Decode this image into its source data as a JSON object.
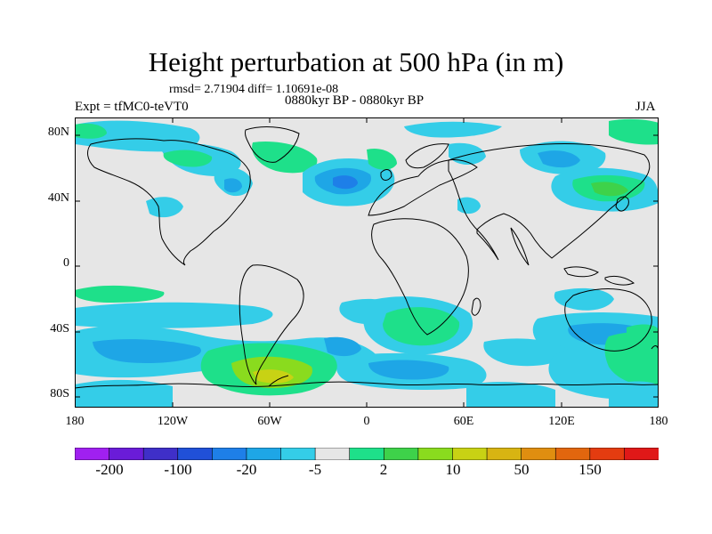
{
  "title": "Height perturbation at 500 hPa (in m)",
  "stats": "rmsd= 2.71904 diff= 1.10691e-08",
  "left_label": "Expt = tfMC0-teVT0",
  "center_label": "0880kyr BP - 0880kyr BP",
  "right_label": "JJA",
  "lat_ticks": [
    "80N",
    "40N",
    "0",
    "40S",
    "80S"
  ],
  "lon_ticks": [
    "180",
    "120W",
    "60W",
    "0",
    "60E",
    "120E",
    "180"
  ],
  "colorbar": {
    "labels": [
      "-200",
      "-100",
      "-20",
      "-5",
      "2",
      "10",
      "50",
      "150"
    ],
    "colors": [
      "#a020f0",
      "#6a1cd8",
      "#3f2fc8",
      "#2050d8",
      "#1e7fe8",
      "#1ea6e6",
      "#34cde8",
      "#e6e6e6",
      "#1ee08a",
      "#3ed24a",
      "#8adb1e",
      "#c8d214",
      "#d8b412",
      "#e08e10",
      "#e2660e",
      "#e43c10",
      "#e01818"
    ]
  },
  "map_colors": {
    "ocean_background": "#e6e6e6",
    "coastline": "#000000"
  }
}
